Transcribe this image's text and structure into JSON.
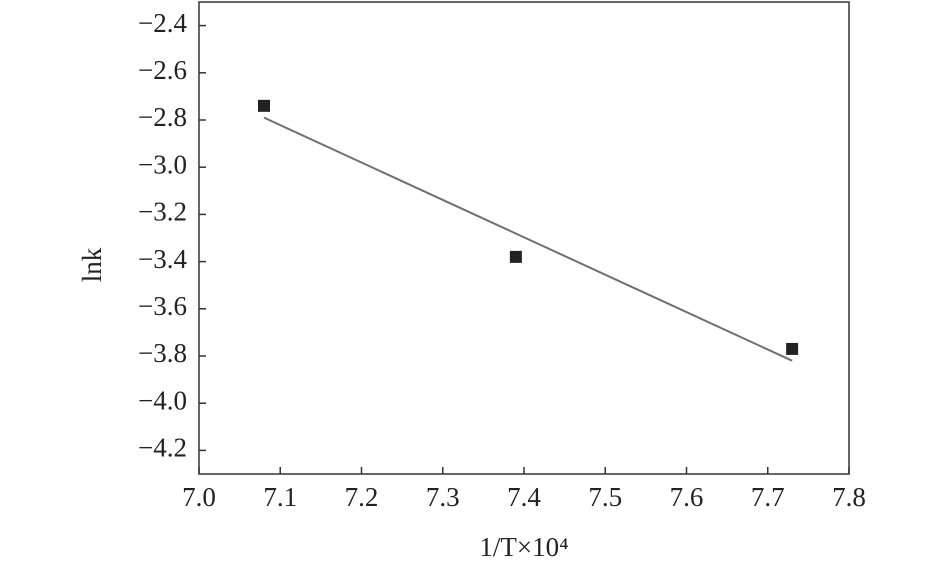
{
  "chart_data": {
    "type": "scatter",
    "x_label": "1/T×10⁴",
    "y_label": "lnk",
    "x": [
      7.08,
      7.39,
      7.73
    ],
    "values": [
      -2.74,
      -3.38,
      -3.77
    ],
    "color": "#222222",
    "fit_line": {
      "x": [
        7.08,
        7.73
      ],
      "values": [
        -2.79,
        -3.82
      ],
      "color": "#707070"
    },
    "xlim": [
      7.0,
      7.8
    ],
    "xticks": [
      {
        "value": 7.0,
        "label": "7.0"
      },
      7.1,
      7.2,
      7.3,
      7.4,
      7.5,
      7.6,
      7.7,
      7.8
    ],
    "ylim": [
      -4.3,
      -2.3
    ],
    "yticks": [
      {
        "value": -4.2,
        "label": "−4.2"
      },
      {
        "value": -4.0,
        "label": "−4.0"
      },
      {
        "value": -3.8,
        "label": "−3.8"
      },
      {
        "value": -3.6,
        "label": "−3.6"
      },
      {
        "value": -3.4,
        "label": "−3.4"
      },
      {
        "value": -3.2,
        "label": "−3.2"
      },
      {
        "value": -3.0,
        "label": "−3.0"
      },
      {
        "value": -2.8,
        "label": "−2.8"
      },
      {
        "value": -2.6,
        "label": "−2.6"
      },
      {
        "value": -2.4,
        "label": "−2.4"
      }
    ]
  }
}
